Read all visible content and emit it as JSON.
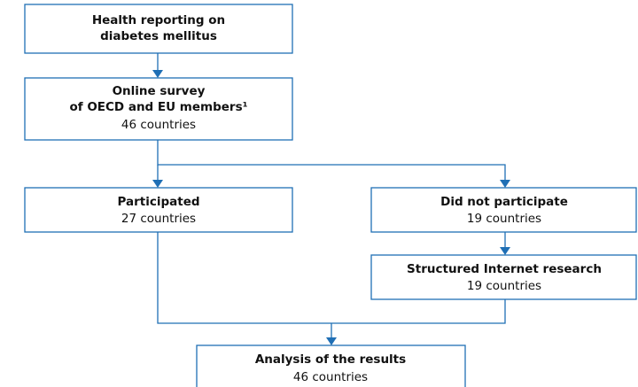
{
  "nodes": [
    {
      "title_lines": [
        "Health reporting on",
        "diabetes mellitus"
      ]
    },
    {
      "title_lines": [
        "Online survey",
        "of OECD and EU members¹"
      ],
      "detail": "46 countries"
    },
    {
      "title_lines": [
        "Participated"
      ],
      "detail": "27 countries"
    },
    {
      "title_lines": [
        "Did not participate"
      ],
      "detail": "19 countries"
    },
    {
      "title_lines": [
        "Structured Internet research"
      ],
      "detail": "19 countries"
    },
    {
      "title_lines": [
        "Analysis of the results"
      ],
      "detail": "46 countries"
    }
  ]
}
